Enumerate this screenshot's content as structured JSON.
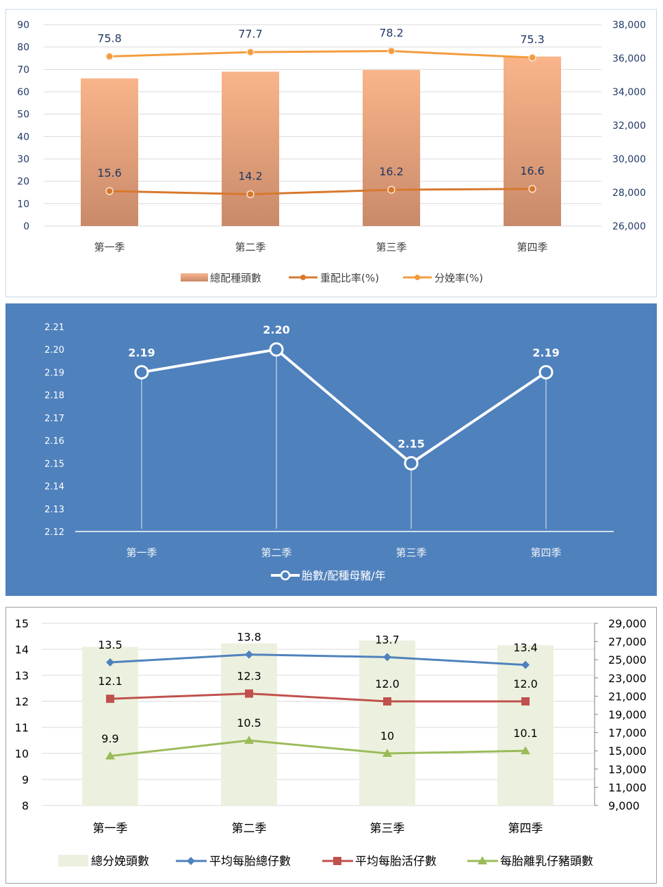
{
  "chart_data": [
    {
      "type": "bar",
      "categories": [
        "第一季",
        "第二季",
        "第三季",
        "第四季"
      ],
      "y_left_ticks": [
        "0",
        "10",
        "20",
        "30",
        "40",
        "50",
        "60",
        "70",
        "80",
        "90"
      ],
      "y_right_ticks": [
        "26,000",
        "28,000",
        "30,000",
        "32,000",
        "34,000",
        "36,000",
        "38,000"
      ],
      "ylim_left": [
        0,
        90
      ],
      "ylim_right": [
        26000,
        38000
      ],
      "grid": true,
      "legend_position": "bottom",
      "series": [
        {
          "name": "總配種頭數",
          "type": "bar",
          "axis": "right",
          "values": [
            34800,
            35200,
            35300,
            36100
          ],
          "color": "#f4b183"
        },
        {
          "name": "重配比率(%)",
          "type": "line",
          "axis": "left",
          "values": [
            15.6,
            14.2,
            16.2,
            16.6
          ],
          "labels": [
            "15.6",
            "14.2",
            "16.2",
            "16.6"
          ],
          "color": "#d7782d"
        },
        {
          "name": "分娩率(%)",
          "type": "line",
          "axis": "left",
          "values": [
            75.8,
            77.7,
            78.2,
            75.3
          ],
          "labels": [
            "75.8",
            "77.7",
            "78.2",
            "75.3"
          ],
          "color": "#f39c3e"
        }
      ]
    },
    {
      "type": "line",
      "categories": [
        "第一季",
        "第二季",
        "第三季",
        "第四季"
      ],
      "y_ticks": [
        "2.12",
        "2.13",
        "2.14",
        "2.15",
        "2.16",
        "2.17",
        "2.18",
        "2.19",
        "2.20",
        "2.21"
      ],
      "ylim": [
        2.12,
        2.21
      ],
      "legend_position": "bottom",
      "background": "#4f81bd",
      "series": [
        {
          "name": "胎數/配種母豬/年",
          "values": [
            2.19,
            2.2,
            2.15,
            2.19
          ],
          "labels": [
            "2.19",
            "2.20",
            "2.15",
            "2.19"
          ],
          "color": "#ffffff"
        }
      ]
    },
    {
      "type": "bar",
      "categories": [
        "第一季",
        "第二季",
        "第三季",
        "第四季"
      ],
      "y_left_ticks": [
        "8",
        "9",
        "10",
        "11",
        "12",
        "13",
        "14",
        "15"
      ],
      "y_right_ticks": [
        "9,000",
        "11,000",
        "13,000",
        "15,000",
        "17,000",
        "19,000",
        "21,000",
        "23,000",
        "25,000",
        "27,000",
        "29,000"
      ],
      "ylim_left": [
        8,
        15
      ],
      "ylim_right": [
        9000,
        29000
      ],
      "grid": true,
      "legend_position": "bottom",
      "series": [
        {
          "name": "總分娩頭數",
          "type": "bar",
          "axis": "right",
          "values": [
            26400,
            26800,
            27100,
            26600
          ],
          "color": "#ebf1de"
        },
        {
          "name": "平均每胎總仔數",
          "type": "line",
          "axis": "left",
          "marker": "diamond",
          "values": [
            13.5,
            13.8,
            13.7,
            13.4
          ],
          "labels": [
            "13.5",
            "13.8",
            "13.7",
            "13.4"
          ],
          "color": "#4f81bd"
        },
        {
          "name": "平均每胎活仔數",
          "type": "line",
          "axis": "left",
          "marker": "square",
          "values": [
            12.1,
            12.3,
            12.0,
            12.0
          ],
          "labels": [
            "12.1",
            "12.3",
            "12.0",
            "12.0"
          ],
          "color": "#c0504d"
        },
        {
          "name": "每胎離乳仔豬頭數",
          "type": "line",
          "axis": "left",
          "marker": "triangle",
          "values": [
            9.9,
            10.5,
            10.0,
            10.1
          ],
          "labels": [
            "9.9",
            "10.5",
            "10",
            "10.1"
          ],
          "color": "#9bbb59"
        }
      ]
    }
  ]
}
